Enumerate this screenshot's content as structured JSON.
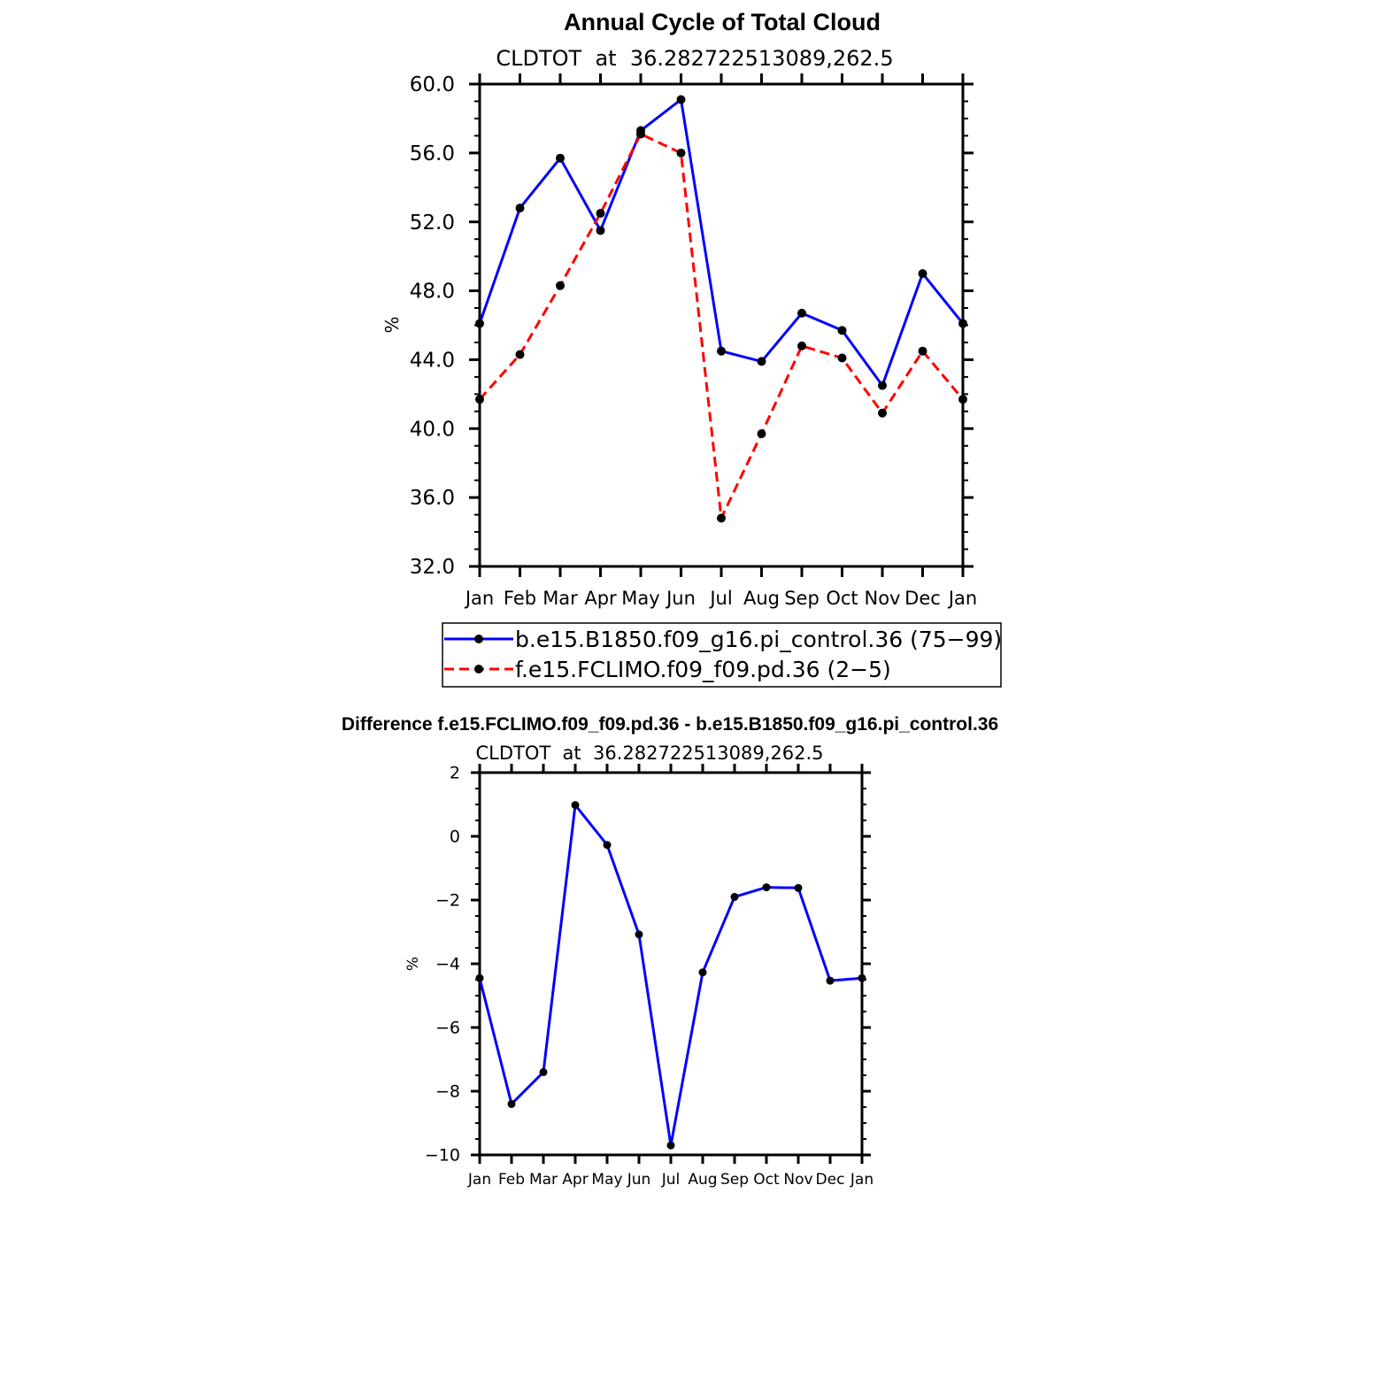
{
  "chart_data": [
    {
      "type": "line",
      "title": "Annual Cycle of Total Cloud",
      "subtitle": "CLDTOT  at  36.282722513089,262.5",
      "xlabel": "",
      "ylabel": "%",
      "categories": [
        "Jan",
        "Feb",
        "Mar",
        "Apr",
        "May",
        "Jun",
        "Jul",
        "Aug",
        "Sep",
        "Oct",
        "Nov",
        "Dec",
        "Jan"
      ],
      "ylim": [
        32,
        60
      ],
      "yticks": [
        "60.0",
        "56.0",
        "52.0",
        "48.0",
        "44.0",
        "40.0",
        "36.0",
        "32.0"
      ],
      "legend_position": "bottom",
      "series": [
        {
          "name": "b.e15.B1850.f09_g16.pi_control.36 (75−99)",
          "color": "#0000ff",
          "dash": "solid",
          "values": [
            46.1,
            52.8,
            55.7,
            51.5,
            57.3,
            59.1,
            44.5,
            43.9,
            46.7,
            45.7,
            42.5,
            49.0,
            46.1
          ]
        },
        {
          "name": "f.e15.FCLIMO.f09_f09.pd.36 (2−5)",
          "color": "#ff0000",
          "dash": "dashed",
          "values": [
            41.7,
            44.3,
            48.3,
            52.5,
            57.1,
            56.0,
            34.8,
            39.7,
            44.8,
            44.1,
            40.9,
            44.5,
            41.7
          ]
        }
      ]
    },
    {
      "type": "line",
      "title": "Difference f.e15.FCLIMO.f09_f09.pd.36 - b.e15.B1850.f09_g16.pi_control.36",
      "subtitle": "CLDTOT  at  36.282722513089,262.5",
      "xlabel": "",
      "ylabel": "%",
      "categories": [
        "Jan",
        "Feb",
        "Mar",
        "Apr",
        "May",
        "Jun",
        "Jul",
        "Aug",
        "Sep",
        "Oct",
        "Nov",
        "Dec",
        "Jan"
      ],
      "ylim": [
        -10,
        2
      ],
      "yticks": [
        "2",
        "0",
        "−2",
        "−4",
        "−6",
        "−8",
        "−10"
      ],
      "series": [
        {
          "color": "#0000ff",
          "dash": "solid",
          "values": [
            -4.45,
            -8.4,
            -7.4,
            0.98,
            -0.27,
            -3.08,
            -9.7,
            -4.27,
            -1.9,
            -1.6,
            -1.62,
            -4.53,
            -4.45
          ]
        }
      ]
    }
  ]
}
